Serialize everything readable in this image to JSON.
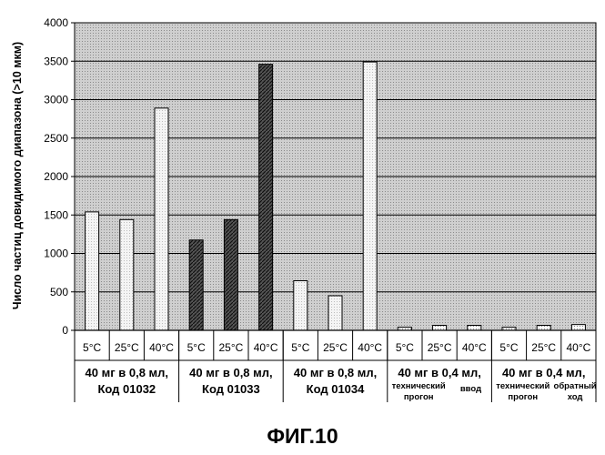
{
  "figure_caption": "ФИГ.10",
  "chart_data": {
    "type": "bar",
    "ylabel": "Число частиц довидимого диапазона (>10 мкм)",
    "xlabel": "",
    "ylim": [
      0,
      4000
    ],
    "yticks": [
      "0",
      "500",
      "1000",
      "1500",
      "2000",
      "2500",
      "3000",
      "3500",
      "4000"
    ],
    "grid": true,
    "legend": "none",
    "groups": [
      {
        "label_lines": [
          "40 мг в 0,8 мл,",
          "Код 01032"
        ],
        "pattern": "light",
        "wide_label": true,
        "bars": [
          {
            "temp": "5°C",
            "value": 1540
          },
          {
            "temp": "25°C",
            "value": 1440
          },
          {
            "temp": "40°C",
            "value": 2890
          }
        ]
      },
      {
        "label_lines": [
          "40 мг в 0,8 мл,",
          "Код 01033"
        ],
        "pattern": "dark",
        "wide_label": true,
        "bars": [
          {
            "temp": "5°C",
            "value": 1175
          },
          {
            "temp": "25°C",
            "value": 1440
          },
          {
            "temp": "40°C",
            "value": 3460
          }
        ]
      },
      {
        "label_lines": [
          "40 мг в 0,8 мл,",
          "Код 01034"
        ],
        "pattern": "light",
        "wide_label": true,
        "bars": [
          {
            "temp": "5°C",
            "value": 645
          },
          {
            "temp": "25°C",
            "value": 450
          },
          {
            "temp": "40°C",
            "value": 3490
          }
        ]
      },
      {
        "label_lines": [
          "40 мг в 0,4 мл,"
        ],
        "sublabels": [
          [
            "технический",
            "прогон"
          ],
          [
            "ввод"
          ]
        ],
        "pattern": "dots",
        "wide_label": false,
        "bars": [
          {
            "temp": "5°C",
            "value": 40
          },
          {
            "temp": "25°C",
            "value": 65
          },
          {
            "temp": "40°C",
            "value": 65
          }
        ]
      },
      {
        "label_lines": [
          "40 мг в 0,4 мл,"
        ],
        "sublabels": [
          [
            "технический",
            "прогон"
          ],
          [
            "обратный",
            "ход"
          ]
        ],
        "pattern": "dots",
        "wide_label": false,
        "bars": [
          {
            "temp": "5°C",
            "value": 40
          },
          {
            "temp": "25°C",
            "value": 65
          },
          {
            "temp": "40°C",
            "value": 75
          }
        ]
      }
    ]
  }
}
